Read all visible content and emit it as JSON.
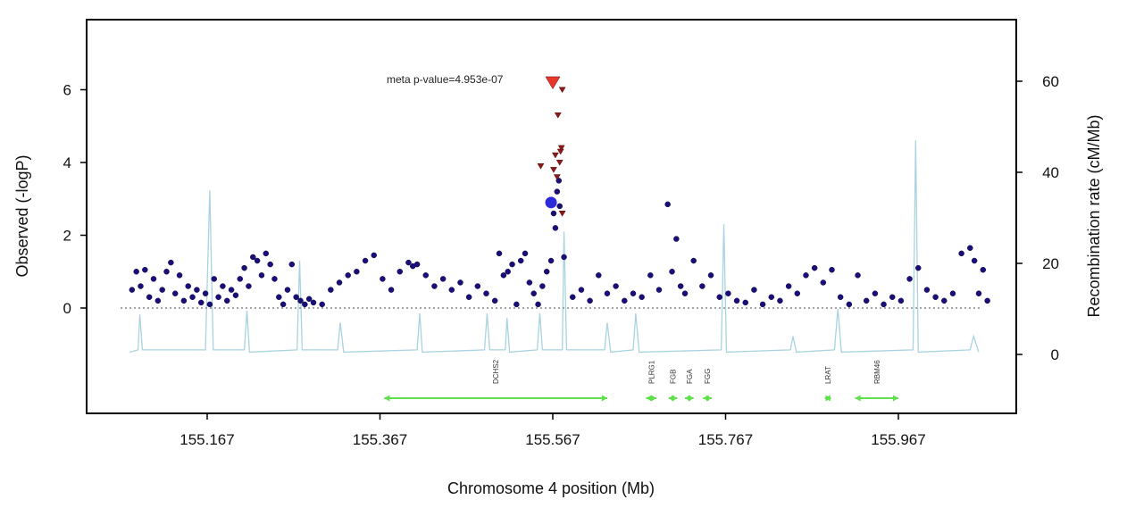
{
  "chart_data": {
    "type": "scatter",
    "xlabel": "Chromosome 4 position (Mb)",
    "ylabel": "Observed (-logP)",
    "y2label": "Recombination rate (cM/Mb)",
    "xlim": [
      155.027,
      156.107
    ],
    "ylim": [
      -2.9,
      7.9
    ],
    "y2lim": [
      -13,
      73
    ],
    "xticks": [
      "155.167",
      "155.367",
      "155.567",
      "155.767",
      "155.967"
    ],
    "yticks": [
      "0",
      "2",
      "4",
      "6"
    ],
    "y2ticks": [
      "0",
      "20",
      "40",
      "60"
    ],
    "annotation": "meta p-value=4.953e-07",
    "colors": {
      "snp": "#1a0f7a",
      "top_snp": "#e8372a",
      "ld_high": "#8b1a1a",
      "reference": "#2b2bdc",
      "recombination": "#a9d3e0",
      "gene": "#5ee04a",
      "baseline": "#888888"
    },
    "snps": [
      [
        155.08,
        0.5
      ],
      [
        155.085,
        1.0
      ],
      [
        155.09,
        0.6
      ],
      [
        155.095,
        1.05
      ],
      [
        155.1,
        0.3
      ],
      [
        155.105,
        0.8
      ],
      [
        155.11,
        0.2
      ],
      [
        155.115,
        0.5
      ],
      [
        155.12,
        1.0
      ],
      [
        155.125,
        1.25
      ],
      [
        155.13,
        0.4
      ],
      [
        155.135,
        0.9
      ],
      [
        155.14,
        0.2
      ],
      [
        155.145,
        0.6
      ],
      [
        155.15,
        0.3
      ],
      [
        155.155,
        0.5
      ],
      [
        155.16,
        0.15
      ],
      [
        155.165,
        0.4
      ],
      [
        155.17,
        0.1
      ],
      [
        155.175,
        0.8
      ],
      [
        155.18,
        0.3
      ],
      [
        155.185,
        0.6
      ],
      [
        155.19,
        0.2
      ],
      [
        155.195,
        0.5
      ],
      [
        155.2,
        0.35
      ],
      [
        155.205,
        0.8
      ],
      [
        155.21,
        1.1
      ],
      [
        155.215,
        0.6
      ],
      [
        155.22,
        1.4
      ],
      [
        155.225,
        1.3
      ],
      [
        155.23,
        0.9
      ],
      [
        155.235,
        1.5
      ],
      [
        155.24,
        1.2
      ],
      [
        155.245,
        0.8
      ],
      [
        155.25,
        0.3
      ],
      [
        155.255,
        0.1
      ],
      [
        155.26,
        0.5
      ],
      [
        155.265,
        1.2
      ],
      [
        155.27,
        0.3
      ],
      [
        155.275,
        0.2
      ],
      [
        155.28,
        0.1
      ],
      [
        155.285,
        0.25
      ],
      [
        155.29,
        0.15
      ],
      [
        155.3,
        0.1
      ],
      [
        155.31,
        0.5
      ],
      [
        155.32,
        0.7
      ],
      [
        155.33,
        0.9
      ],
      [
        155.34,
        1.0
      ],
      [
        155.35,
        1.3
      ],
      [
        155.36,
        1.45
      ],
      [
        155.37,
        0.8
      ],
      [
        155.38,
        0.5
      ],
      [
        155.39,
        1.0
      ],
      [
        155.4,
        1.25
      ],
      [
        155.405,
        1.15
      ],
      [
        155.41,
        1.2
      ],
      [
        155.42,
        0.9
      ],
      [
        155.43,
        0.6
      ],
      [
        155.44,
        0.8
      ],
      [
        155.45,
        0.5
      ],
      [
        155.46,
        0.7
      ],
      [
        155.47,
        0.3
      ],
      [
        155.48,
        0.6
      ],
      [
        155.49,
        0.4
      ],
      [
        155.5,
        0.2
      ],
      [
        155.505,
        1.5
      ],
      [
        155.51,
        0.9
      ],
      [
        155.515,
        1.0
      ],
      [
        155.52,
        1.2
      ],
      [
        155.525,
        0.1
      ],
      [
        155.53,
        1.3
      ],
      [
        155.535,
        1.5
      ],
      [
        155.54,
        0.7
      ],
      [
        155.545,
        0.4
      ],
      [
        155.55,
        0.1
      ],
      [
        155.555,
        0.6
      ],
      [
        155.56,
        1.0
      ],
      [
        155.565,
        1.3
      ],
      [
        155.57,
        2.2
      ],
      [
        155.575,
        2.8
      ],
      [
        155.572,
        3.2
      ],
      [
        155.574,
        3.5
      ],
      [
        155.568,
        2.6
      ],
      [
        155.58,
        1.4
      ],
      [
        155.59,
        0.3
      ],
      [
        155.6,
        0.5
      ],
      [
        155.61,
        0.2
      ],
      [
        155.62,
        0.9
      ],
      [
        155.63,
        0.4
      ],
      [
        155.64,
        0.6
      ],
      [
        155.65,
        0.2
      ],
      [
        155.66,
        0.4
      ],
      [
        155.67,
        0.3
      ],
      [
        155.68,
        0.9
      ],
      [
        155.69,
        0.5
      ],
      [
        155.7,
        2.85
      ],
      [
        155.705,
        1.0
      ],
      [
        155.71,
        1.9
      ],
      [
        155.715,
        0.6
      ],
      [
        155.72,
        0.4
      ],
      [
        155.73,
        1.3
      ],
      [
        155.74,
        0.6
      ],
      [
        155.75,
        0.9
      ],
      [
        155.76,
        0.3
      ],
      [
        155.77,
        0.4
      ],
      [
        155.78,
        0.2
      ],
      [
        155.79,
        0.15
      ],
      [
        155.8,
        0.5
      ],
      [
        155.81,
        0.1
      ],
      [
        155.82,
        0.3
      ],
      [
        155.83,
        0.2
      ],
      [
        155.84,
        0.6
      ],
      [
        155.85,
        0.4
      ],
      [
        155.86,
        0.9
      ],
      [
        155.87,
        1.1
      ],
      [
        155.88,
        0.7
      ],
      [
        155.89,
        1.05
      ],
      [
        155.9,
        0.3
      ],
      [
        155.91,
        0.1
      ],
      [
        155.92,
        0.9
      ],
      [
        155.93,
        0.2
      ],
      [
        155.94,
        0.4
      ],
      [
        155.95,
        0.1
      ],
      [
        155.96,
        0.3
      ],
      [
        155.97,
        0.2
      ],
      [
        155.98,
        0.8
      ],
      [
        155.99,
        1.1
      ],
      [
        156.0,
        0.5
      ],
      [
        156.01,
        0.3
      ],
      [
        156.02,
        0.2
      ],
      [
        156.03,
        0.4
      ],
      [
        156.04,
        1.5
      ],
      [
        156.05,
        1.65
      ],
      [
        156.055,
        1.3
      ],
      [
        156.06,
        0.4
      ],
      [
        156.065,
        1.05
      ],
      [
        156.07,
        0.2
      ]
    ],
    "ld_snps": [
      [
        155.578,
        6.0
      ],
      [
        155.573,
        5.3
      ],
      [
        155.577,
        4.4
      ],
      [
        155.553,
        3.9
      ],
      [
        155.57,
        4.2
      ],
      [
        155.575,
        4.0
      ],
      [
        155.568,
        3.8
      ],
      [
        155.572,
        3.6
      ],
      [
        155.576,
        4.3
      ],
      [
        155.578,
        2.6
      ]
    ],
    "top_snp": [
      155.567,
      6.2
    ],
    "reference_snp": [
      155.565,
      2.9
    ],
    "recombination": [
      [
        155.077,
        0.5
      ],
      [
        155.087,
        1
      ],
      [
        155.089,
        8.8
      ],
      [
        155.092,
        1
      ],
      [
        155.165,
        1
      ],
      [
        155.17,
        36
      ],
      [
        155.174,
        1
      ],
      [
        155.21,
        1
      ],
      [
        155.213,
        9.6
      ],
      [
        155.216,
        0.5
      ],
      [
        155.271,
        1
      ],
      [
        155.274,
        20.6
      ],
      [
        155.277,
        1
      ],
      [
        155.318,
        1
      ],
      [
        155.321,
        7
      ],
      [
        155.325,
        0.5
      ],
      [
        155.41,
        1
      ],
      [
        155.413,
        9
      ],
      [
        155.416,
        0.5
      ],
      [
        155.488,
        1
      ],
      [
        155.491,
        9
      ],
      [
        155.494,
        1
      ],
      [
        155.512,
        1
      ],
      [
        155.514,
        8
      ],
      [
        155.517,
        0.5
      ],
      [
        155.549,
        1
      ],
      [
        155.552,
        9
      ],
      [
        155.555,
        1
      ],
      [
        155.578,
        1
      ],
      [
        155.58,
        27
      ],
      [
        155.583,
        1
      ],
      [
        155.627,
        1
      ],
      [
        155.63,
        7
      ],
      [
        155.634,
        0.5
      ],
      [
        155.66,
        1
      ],
      [
        155.663,
        9
      ],
      [
        155.667,
        0.5
      ],
      [
        155.762,
        1
      ],
      [
        155.765,
        28.6
      ],
      [
        155.768,
        0.5
      ],
      [
        155.842,
        1
      ],
      [
        155.845,
        4
      ],
      [
        155.849,
        0.5
      ],
      [
        155.893,
        1
      ],
      [
        155.897,
        10
      ],
      [
        155.901,
        0.5
      ],
      [
        155.984,
        1
      ],
      [
        155.987,
        47
      ],
      [
        155.99,
        0.5
      ],
      [
        156.05,
        1
      ],
      [
        156.054,
        4
      ],
      [
        156.06,
        0.5
      ]
    ],
    "genes": [
      {
        "name": "DCHS2",
        "start": 155.372,
        "end": 155.63
      },
      {
        "name": "PLRG1",
        "start": 155.675,
        "end": 155.687
      },
      {
        "name": "FGB",
        "start": 155.701,
        "end": 155.711
      },
      {
        "name": "FGA",
        "start": 155.72,
        "end": 155.73
      },
      {
        "name": "FGG",
        "start": 155.741,
        "end": 155.751
      },
      {
        "name": "LRAT",
        "start": 155.882,
        "end": 155.889
      },
      {
        "name": "RBM46",
        "start": 155.917,
        "end": 155.967
      }
    ]
  }
}
